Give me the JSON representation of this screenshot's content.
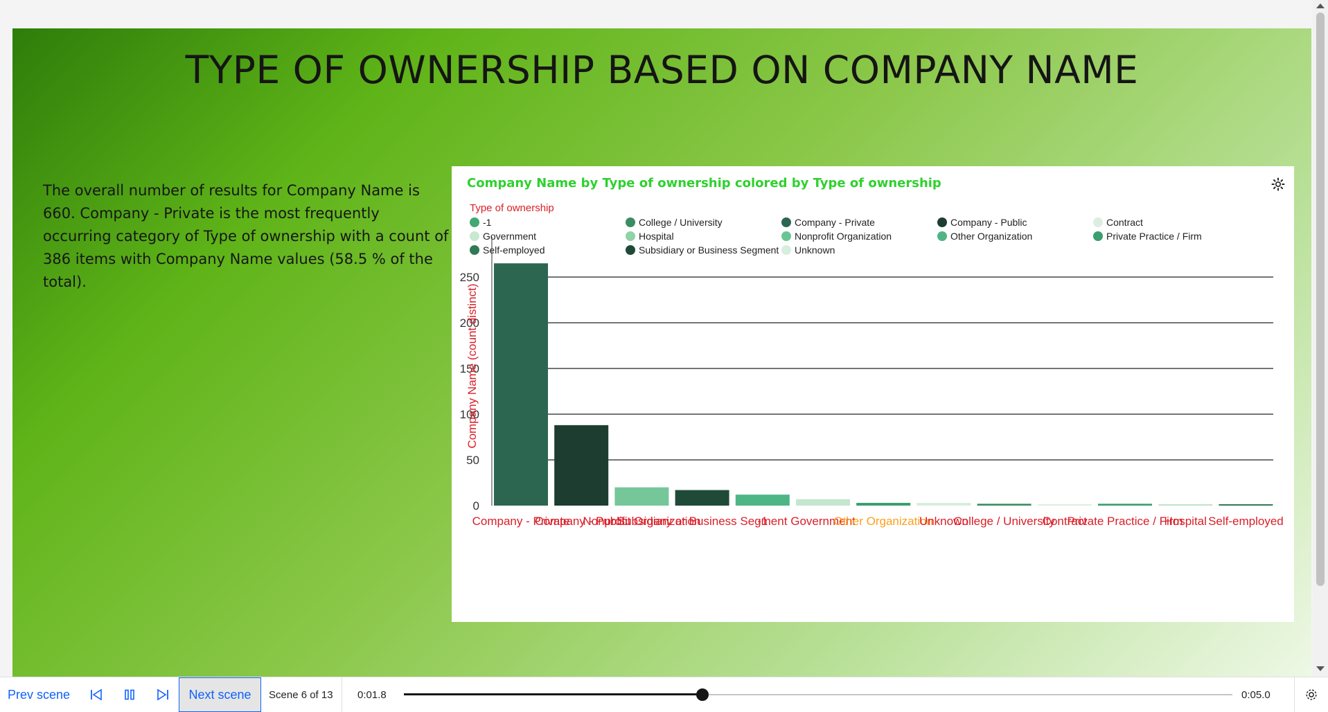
{
  "scene": {
    "title": "TYPE OF OWNERSHIP BASED ON COMPANY NAME",
    "summary": "The overall number of results for Company Name is 660. Company - Private is the most frequently occurring category of Type of ownership with a count of 386 items with Company Name values (58.5 % of the total).",
    "background_colors": [
      "#2e7d0a",
      "#5fb418",
      "#8cc84b",
      "#b9e098",
      "#eef8e6"
    ]
  },
  "chart_card": {
    "title": "Company Name by Type of ownership colored by Type of ownership",
    "title_color": "#2ed12e",
    "settings_icon": "settings-gear-icon"
  },
  "chart_data": {
    "type": "bar",
    "title": "Company Name by Type of ownership colored by Type of ownership",
    "xlabel": "",
    "ylabel": "Company Name (count distinct)",
    "ylim": [
      0,
      275
    ],
    "yticks": [
      0,
      50,
      100,
      150,
      200,
      250
    ],
    "grid": true,
    "legend": {
      "title": "Type of ownership",
      "placement": "top",
      "entries": [
        {
          "name": "-1",
          "color": "#41a873"
        },
        {
          "name": "College / University",
          "color": "#3b8c62"
        },
        {
          "name": "Company - Private",
          "color": "#2c6650"
        },
        {
          "name": "Company - Public",
          "color": "#1d3d30"
        },
        {
          "name": "Contract",
          "color": "#dceee0"
        },
        {
          "name": "Government",
          "color": "#c8e8d2"
        },
        {
          "name": "Hospital",
          "color": "#8fd3a7"
        },
        {
          "name": "Nonprofit Organization",
          "color": "#6bc494"
        },
        {
          "name": "Other Organization",
          "color": "#4fb585"
        },
        {
          "name": "Private Practice / Firm",
          "color": "#3a9e6e"
        },
        {
          "name": "Self-employed",
          "color": "#2f7a55"
        },
        {
          "name": "Subsidiary or Business Segment",
          "color": "#1f4a38"
        },
        {
          "name": "Unknown",
          "color": "#d6eedd"
        }
      ]
    },
    "categories": [
      "Company - Private",
      "Company - Public",
      "Nonprofit Organization",
      "Subsidiary or Business Segment",
      "-1",
      "Government",
      "Other Organization",
      "Unknown",
      "College / University",
      "Contract",
      "Private Practice / Firm",
      "Hospital",
      "Self-employed"
    ],
    "values": [
      265,
      88,
      20,
      17,
      12,
      7,
      3,
      3,
      2,
      1,
      2,
      1,
      1
    ],
    "bar_colors": [
      "#2c6650",
      "#1d3d30",
      "#75c79a",
      "#1f4a38",
      "#4fb585",
      "#c4e6cf",
      "#3a9e6e",
      "#d6eedd",
      "#3b8c62",
      "#dceee0",
      "#3a9e6e",
      "#bfe3c9",
      "#2f7a55"
    ],
    "label_colors": [
      "#da1e28",
      "#da1e28",
      "#da1e28",
      "#da1e28",
      "#da1e28",
      "#da1e28",
      "#ff9f1a",
      "#da1e28",
      "#da1e28",
      "#da1e28",
      "#da1e28",
      "#da1e28",
      "#da1e28"
    ]
  },
  "player": {
    "prev_label": "Prev scene",
    "next_label": "Next scene",
    "scene_counter": "Scene 6 of 13",
    "elapsed": "0:01.8",
    "total": "0:05.0",
    "progress": 0.36,
    "icons": {
      "skip_back": "skip-back-icon",
      "pause": "pause-icon",
      "skip_forward": "skip-forward-icon",
      "settings": "settings-icon",
      "notes": "notes-icon"
    }
  }
}
